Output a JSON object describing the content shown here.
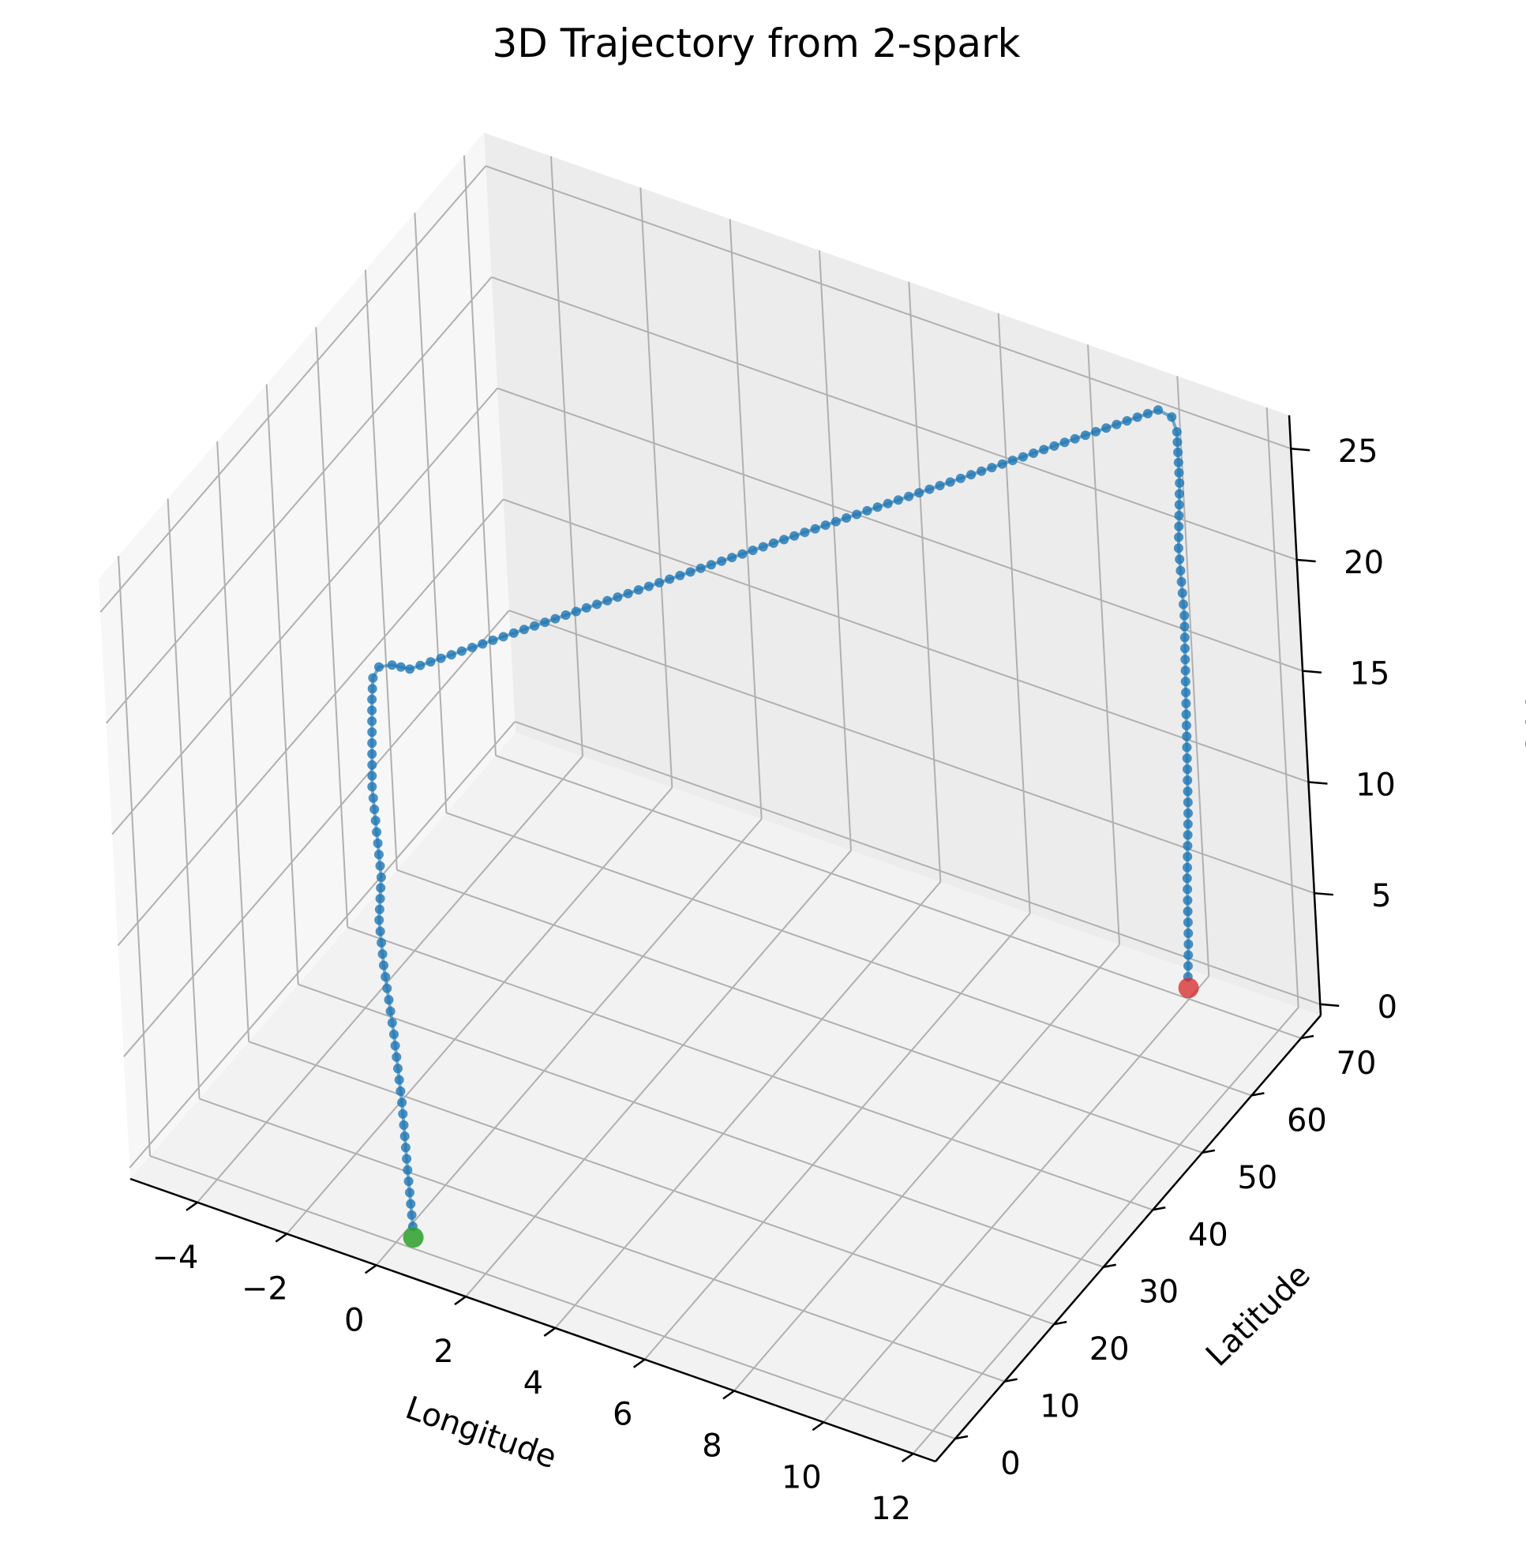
{
  "chart_data": {
    "type": "scatter",
    "projection": "3d",
    "title": "3D Trajectory from 2-spark",
    "xlabel": "Longitude",
    "ylabel": "Latitude",
    "zlabel": "Altitude",
    "x_ticks": [
      -4,
      -2,
      0,
      2,
      4,
      6,
      8,
      10,
      12
    ],
    "y_ticks": [
      0,
      10,
      20,
      30,
      40,
      50,
      60,
      70
    ],
    "z_ticks": [
      0,
      5,
      10,
      15,
      20,
      25
    ],
    "xlim": [
      -5.5,
      12.5
    ],
    "ylim": [
      -4,
      74
    ],
    "zlim": [
      -0.5,
      26.5
    ],
    "grid": true,
    "series": [
      {
        "color": "#1f77b4",
        "marker": "circle",
        "line": true,
        "path": [
          {
            "x": 0.4,
            "y": 0,
            "z": 0.5
          },
          {
            "x": 0.35,
            "y": 0,
            "z": 3
          },
          {
            "x": 0.3,
            "y": 0,
            "z": 6
          },
          {
            "x": 0.2,
            "y": 0,
            "z": 9
          },
          {
            "x": 0.05,
            "y": 0,
            "z": 12
          },
          {
            "x": 0.0,
            "y": 0,
            "z": 14
          },
          {
            "x": 0.1,
            "y": 0,
            "z": 16
          },
          {
            "x": 0.05,
            "y": 0,
            "z": 18
          },
          {
            "x": 0.0,
            "y": 0,
            "z": 20
          },
          {
            "x": 0.05,
            "y": 0,
            "z": 22
          },
          {
            "x": 0.1,
            "y": 0,
            "z": 24
          },
          {
            "x": 0.15,
            "y": 0,
            "z": 25
          },
          {
            "x": 0.3,
            "y": 0,
            "z": 25.6
          },
          {
            "x": 0.6,
            "y": 0,
            "z": 25.9
          },
          {
            "x": 1.0,
            "y": 0,
            "z": 26
          },
          {
            "x": 10.0,
            "y": 70,
            "z": 26
          },
          {
            "x": 10.3,
            "y": 70,
            "z": 25.9
          },
          {
            "x": 10.4,
            "y": 70,
            "z": 25.3
          },
          {
            "x": 10.4,
            "y": 70,
            "z": 23
          },
          {
            "x": 10.3,
            "y": 70,
            "z": 20
          },
          {
            "x": 10.35,
            "y": 70,
            "z": 17
          },
          {
            "x": 10.3,
            "y": 70,
            "z": 14
          },
          {
            "x": 10.25,
            "y": 70,
            "z": 11
          },
          {
            "x": 10.2,
            "y": 70,
            "z": 8
          },
          {
            "x": 10.1,
            "y": 70,
            "z": 5
          },
          {
            "x": 10.05,
            "y": 70,
            "z": 2
          },
          {
            "x": 10.0,
            "y": 70,
            "z": 0.5
          }
        ]
      }
    ],
    "start_marker": {
      "x": 0.4,
      "y": 0,
      "z": 0,
      "color": "#2ca02c"
    },
    "end_marker": {
      "x": 10.0,
      "y": 70,
      "z": 0,
      "color": "#d62728"
    }
  }
}
